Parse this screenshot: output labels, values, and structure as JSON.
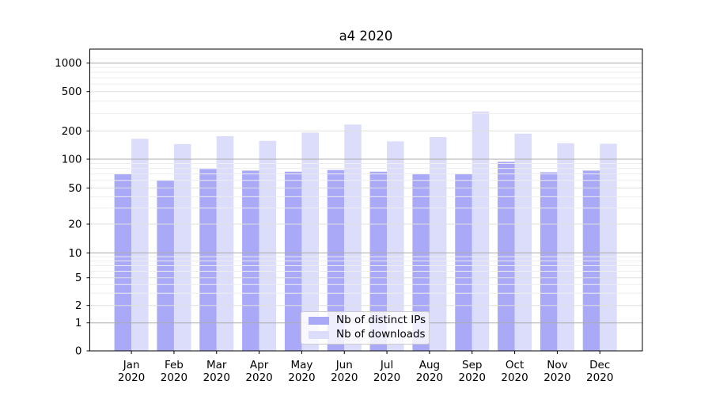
{
  "chart_data": {
    "type": "bar",
    "title": "a4 2020",
    "categories": [
      "Jan",
      "Feb",
      "Mar",
      "Apr",
      "May",
      "Jun",
      "Jul",
      "Aug",
      "Sep",
      "Oct",
      "Nov",
      "Dec"
    ],
    "x_year_label": "2020",
    "series": [
      {
        "name": "Nb of distinct IPs",
        "color": "#a9a9f7",
        "values": [
          70,
          60,
          79,
          76,
          74,
          77,
          74,
          70,
          70,
          94,
          73,
          76
        ]
      },
      {
        "name": "Nb of downloads",
        "color": "#dcdcfb",
        "values": [
          165,
          145,
          176,
          157,
          192,
          232,
          155,
          172,
          315,
          187,
          148,
          146
        ]
      }
    ],
    "yscale": "symlog",
    "ylim": [
      0,
      1400
    ],
    "ytick_values": [
      0,
      1,
      2,
      5,
      10,
      20,
      50,
      100,
      200,
      500,
      1000
    ],
    "ytick_labels": [
      "0",
      "1",
      "2",
      "5",
      "10",
      "20",
      "50",
      "100",
      "200",
      "500",
      "1000"
    ],
    "major_gridline_values": [
      1,
      10,
      100,
      1000
    ],
    "minor_gridline_values": [
      3,
      4,
      6,
      7,
      8,
      9,
      30,
      40,
      60,
      70,
      80,
      90,
      300,
      400,
      600,
      700,
      800,
      900
    ],
    "grid": true,
    "legend_position": "lower center",
    "xlabel": "",
    "ylabel": ""
  },
  "colors": {
    "axis": "#000000",
    "grid_major": "#ababab",
    "grid_minor_labeled": "#dfdfdf",
    "grid_minor_faint": "#ededed",
    "tick_text": "#000000",
    "background": "#ffffff"
  }
}
